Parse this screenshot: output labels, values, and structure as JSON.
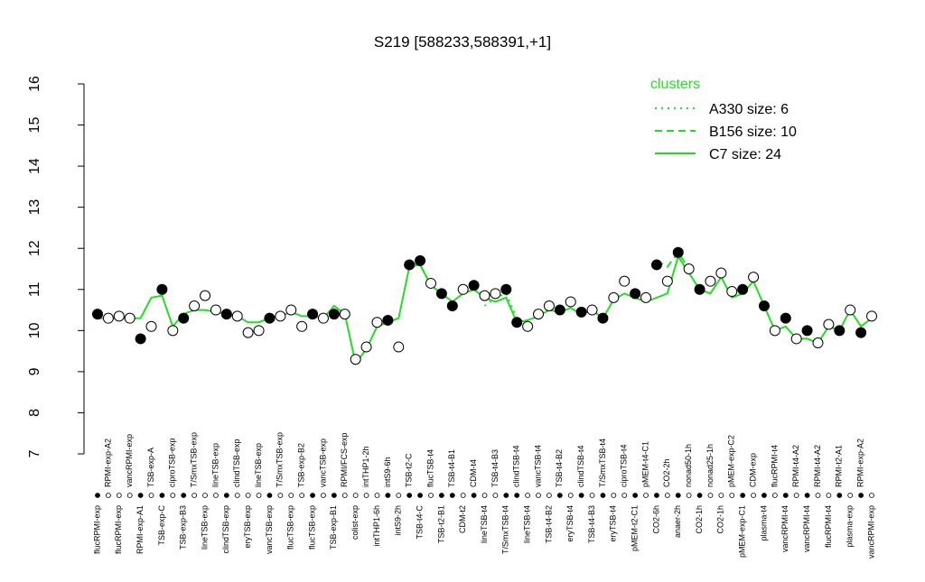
{
  "chart_data": {
    "type": "line",
    "title": "S219 [588233,588391,+1]",
    "categories": [
      "flucRPMI-exp",
      "RPMI-exp-A2",
      "flucRPMI-exp",
      "vancRPMI-exp",
      "RPMI-exp-A1",
      "TSB-exp-A",
      "TSB-exp-C",
      "ciproTSB-exp",
      "TSB-exp-B3",
      "T/SmxTSB-exp",
      "lineTSB-exp",
      "lineTSB-exp",
      "clindTSB-exp",
      "clindTSB-exp",
      "eryTSB-exp",
      "lineTSB-exp",
      "vancTSB-exp",
      "T/SmxTSB-exp",
      "flucTSB-exp",
      "TSB-exp-B2",
      "flucTSB-exp",
      "vancTSB-exp",
      "TSB-exp-B1",
      "RPMI/FCS-exp",
      "colist-exp",
      "intTHP1-2h",
      "intTHP1-6h",
      "intS9-6h",
      "intS9-2h",
      "TSB-t2-C",
      "TSB-t4-C",
      "flucTSB-t4",
      "TSB-t2-B1",
      "TSB-t4-B1",
      "CDM-t2",
      "CDM-t4",
      "lineTSB-t4",
      "TSB-t4-B3",
      "T/SmxTSB-t4",
      "clindTSB-t4",
      "lineTSB-t4",
      "vancTSB-t4",
      "TSB-t4-B2",
      "TSB-t4-B2",
      "eryTSB-t4",
      "clindTSB-t4",
      "TSB-t4-B3",
      "T/SmxTSB-t4",
      "eryTSB-t4",
      "ciproTSB-t4",
      "pMEM-t2-C1",
      "pMEM-t4-C1",
      "CO2-6h",
      "CO2-2h",
      "anaer-2h",
      "nonad50-1h",
      "CO2-1h",
      "nonad25-1h",
      "CO2-1h",
      "pMEM-exp-C2",
      "pMEM-exp-C1",
      "CDM-exp",
      "plasma-t4",
      "flucRPMI-t4",
      "vancRPMI-t4",
      "RPMI-t4-A2",
      "vancRPMI-t4",
      "RPMI-t4-A2",
      "flucRPMI-t4",
      "RPMI-t2-A1",
      "plasma-exp",
      "RPMI-exp-A2",
      "vancRPMI-exp"
    ],
    "values": [
      10.4,
      10.3,
      10.35,
      10.3,
      9.8,
      10.1,
      11.0,
      10.0,
      10.3,
      10.6,
      10.85,
      10.5,
      10.4,
      10.35,
      9.95,
      10.0,
      10.3,
      10.35,
      10.5,
      10.1,
      10.4,
      10.3,
      10.4,
      10.4,
      9.3,
      9.6,
      10.2,
      10.25,
      9.6,
      11.6,
      11.7,
      11.15,
      10.9,
      10.6,
      11.0,
      11.1,
      10.85,
      10.9,
      11.0,
      10.2,
      10.1,
      10.4,
      10.6,
      10.5,
      10.7,
      10.45,
      10.5,
      10.3,
      10.8,
      11.2,
      10.9,
      10.8,
      11.6,
      11.2,
      11.9,
      11.5,
      11.0,
      11.2,
      11.4,
      10.95,
      11.0,
      11.3,
      10.6,
      10.0,
      10.3,
      9.8,
      10.0,
      9.7,
      10.15,
      10.0,
      10.5,
      9.95,
      10.35
    ],
    "filled": [
      true,
      false,
      false,
      false,
      true,
      false,
      true,
      false,
      true,
      false,
      false,
      false,
      true,
      false,
      false,
      false,
      true,
      false,
      false,
      false,
      true,
      false,
      true,
      false,
      false,
      false,
      false,
      true,
      false,
      true,
      true,
      false,
      true,
      true,
      false,
      true,
      false,
      false,
      true,
      true,
      false,
      false,
      false,
      true,
      false,
      true,
      false,
      true,
      false,
      false,
      true,
      false,
      true,
      false,
      true,
      false,
      true,
      false,
      false,
      false,
      true,
      false,
      true,
      false,
      true,
      false,
      true,
      false,
      false,
      true,
      false,
      true,
      false
    ],
    "series": [
      {
        "name": "A330 size: 6",
        "color": "#22dd22",
        "linestyle": "dotted",
        "values": [
          null,
          null,
          null,
          null,
          null,
          null,
          null,
          null,
          null,
          null,
          null,
          null,
          null,
          null,
          null,
          null,
          null,
          null,
          null,
          null,
          null,
          null,
          null,
          null,
          null,
          null,
          null,
          null,
          null,
          null,
          null,
          null,
          null,
          null,
          null,
          null,
          10.6,
          10.8,
          10.9,
          10.3,
          null,
          null,
          null,
          null,
          null,
          null,
          null,
          null,
          null,
          null,
          null,
          null,
          null,
          null,
          null,
          null,
          null,
          null,
          null,
          null,
          null,
          null,
          null,
          null,
          null,
          null,
          null,
          null,
          null,
          null,
          null,
          null,
          null
        ]
      },
      {
        "name": "B156 size: 10",
        "color": "#22dd22",
        "linestyle": "dashed",
        "values": [
          null,
          null,
          null,
          null,
          null,
          null,
          null,
          null,
          null,
          null,
          null,
          null,
          null,
          null,
          null,
          null,
          null,
          null,
          null,
          null,
          null,
          null,
          null,
          null,
          null,
          null,
          null,
          null,
          null,
          11.65,
          11.6,
          11.1,
          null,
          null,
          null,
          null,
          null,
          null,
          null,
          null,
          null,
          null,
          null,
          null,
          null,
          null,
          null,
          null,
          null,
          null,
          null,
          null,
          11.7,
          11.55,
          11.9,
          11.5,
          null,
          null,
          null,
          null,
          null,
          null,
          null,
          null,
          null,
          null,
          null,
          null,
          null,
          null,
          null,
          null,
          null
        ]
      },
      {
        "name": "C7 size: 24",
        "color": "#22dd22",
        "linestyle": "solid",
        "values": [
          10.3,
          10.3,
          10.3,
          10.3,
          10.3,
          10.8,
          10.85,
          10.1,
          10.4,
          10.5,
          10.5,
          10.45,
          10.4,
          10.35,
          10.2,
          10.2,
          10.3,
          10.35,
          10.45,
          10.35,
          10.35,
          10.3,
          10.6,
          10.4,
          9.2,
          9.55,
          10.1,
          10.2,
          10.3,
          11.55,
          11.6,
          11.1,
          10.9,
          10.7,
          10.9,
          11.0,
          10.8,
          10.7,
          10.8,
          10.2,
          10.25,
          10.35,
          10.5,
          10.45,
          10.55,
          10.4,
          10.5,
          10.3,
          10.75,
          10.9,
          10.8,
          10.7,
          10.8,
          10.9,
          11.8,
          11.4,
          11.0,
          10.9,
          11.3,
          10.8,
          10.9,
          11.2,
          10.6,
          10.0,
          10.1,
          9.8,
          9.8,
          9.7,
          10.1,
          10.0,
          10.5,
          10.1,
          10.3
        ]
      }
    ],
    "legend_title": "clusters",
    "ylim": [
      7,
      16
    ],
    "yticks": [
      7,
      8,
      9,
      10,
      11,
      12,
      13,
      14,
      15,
      16
    ]
  }
}
